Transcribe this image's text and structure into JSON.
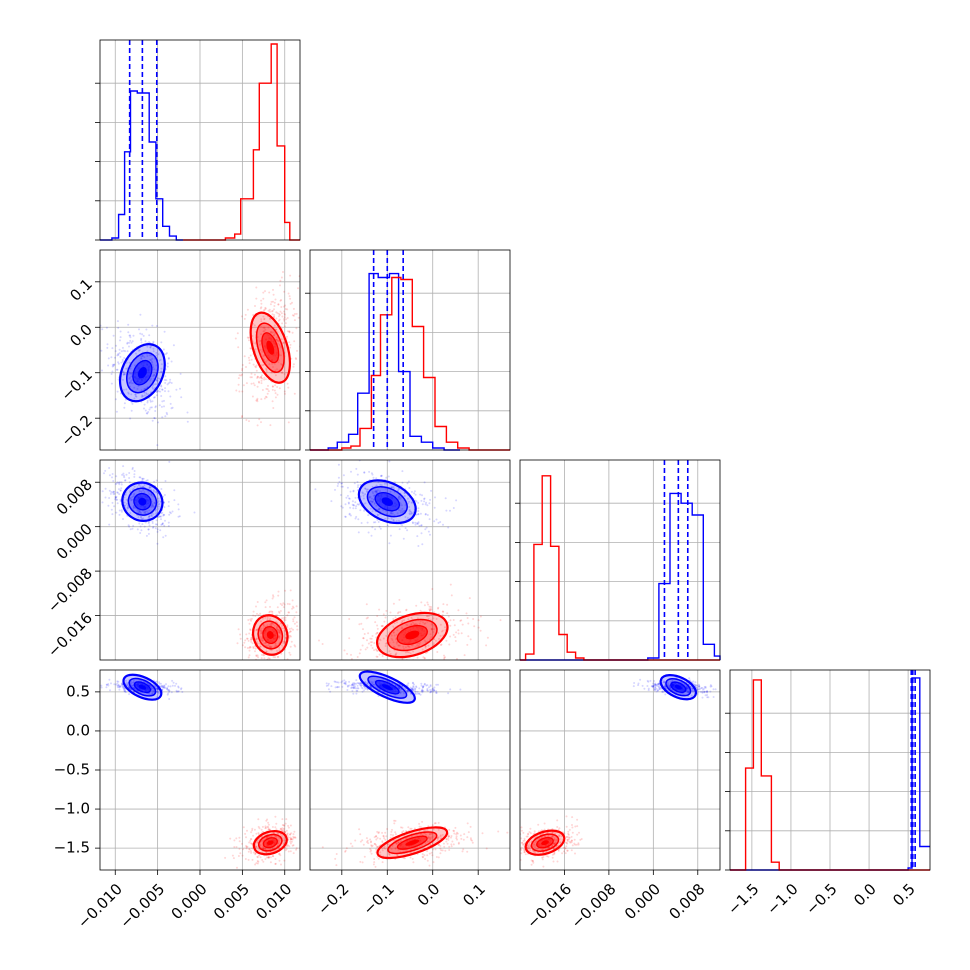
{
  "chart_data": {
    "type": "corner",
    "grid": true,
    "colors": {
      "series_a": "#0000ff",
      "series_b": "#ff0000"
    },
    "series": [
      {
        "color": "#0000ff",
        "centers": [
          -0.0068,
          -0.1,
          0.0045,
          0.56
        ],
        "spread": [
          0.0012,
          0.033,
          0.0017,
          0.025
        ],
        "quantile_lines": {
          "p0": [
            -0.0083,
            -0.0068,
            -0.0051
          ],
          "p1": [
            -0.13,
            -0.1,
            -0.065
          ],
          "p2": [
            0.002,
            0.0045,
            0.0062
          ],
          "p3": [
            0.54,
            0.56,
            0.59
          ]
        }
      },
      {
        "color": "#ff0000",
        "centers": [
          0.0083,
          -0.045,
          -0.0195,
          -1.43
        ],
        "spread": [
          0.001,
          0.04,
          0.0018,
          0.07
        ]
      }
    ],
    "histograms": [
      {
        "range": [
          -0.0118,
          0.0118
        ],
        "blue": [
          0.0,
          0.01,
          0.13,
          0.45,
          0.76,
          0.75,
          0.5,
          0.21,
          0.07,
          0.02,
          0.0
        ],
        "red": [
          0.0,
          0.01,
          0.03,
          0.21,
          0.46,
          0.8,
          1.0,
          0.48,
          0.09,
          0.0
        ],
        "blue_edges": [
          -0.0118,
          -0.0104,
          -0.0096,
          -0.0089,
          -0.0082,
          -0.0074,
          -0.006,
          -0.0052,
          -0.0044,
          -0.0036,
          -0.0028,
          -0.002
        ],
        "red_edges": [
          -0.002,
          0.003,
          0.0041,
          0.0048,
          0.0063,
          0.007,
          0.0084,
          0.0091,
          0.01,
          0.0106,
          0.0118
        ]
      },
      {
        "range": [
          -0.27,
          0.17
        ],
        "blue": [
          0.0,
          0.01,
          0.04,
          0.08,
          0.29,
          0.9,
          0.88,
          0.9,
          0.4,
          0.07,
          0.04,
          0.01,
          0.0
        ],
        "red": [
          0.0,
          0.01,
          0.02,
          0.11,
          0.38,
          0.69,
          0.88,
          0.87,
          0.63,
          0.37,
          0.12,
          0.04,
          0.01,
          0.0
        ],
        "blue_edges": [
          -0.27,
          -0.23,
          -0.21,
          -0.185,
          -0.165,
          -0.14,
          -0.12,
          -0.095,
          -0.075,
          -0.05,
          -0.025,
          0.0,
          0.025,
          0.06
        ],
        "red_edges": [
          -0.27,
          -0.2,
          -0.18,
          -0.16,
          -0.135,
          -0.115,
          -0.09,
          -0.07,
          -0.045,
          -0.02,
          0.005,
          0.03,
          0.055,
          0.08,
          0.17
        ]
      },
      {
        "range": [
          -0.024,
          0.012
        ],
        "blue": [
          0.0,
          0.01,
          0.39,
          0.85,
          0.8,
          0.74,
          0.08,
          0.02,
          0.0
        ],
        "red": [
          0.0,
          0.03,
          0.59,
          0.94,
          0.58,
          0.13,
          0.04,
          0.01,
          0.0
        ],
        "blue_edges": [
          -0.024,
          -0.001,
          0.001,
          0.003,
          0.005,
          0.007,
          0.009,
          0.011,
          0.012,
          0.012
        ],
        "red_edges": [
          -0.024,
          -0.023,
          -0.0215,
          -0.02,
          -0.0185,
          -0.017,
          -0.0155,
          -0.014,
          -0.0125,
          0.012
        ]
      },
      {
        "range": [
          -1.78,
          0.78
        ],
        "blue": [
          0.0,
          0.0,
          0.01,
          0.98,
          0.12
        ],
        "red": [
          0.0,
          0.52,
          0.97,
          0.48,
          0.04,
          0.0
        ],
        "blue_edges": [
          -1.78,
          -0.3,
          0.5,
          0.55,
          0.65,
          0.78
        ],
        "red_edges": [
          -1.78,
          -1.58,
          -1.48,
          -1.38,
          -1.25,
          -1.15,
          0.78
        ]
      }
    ],
    "axes": [
      {
        "range": [
          -0.0118,
          0.0118
        ],
        "ticks": [
          -0.01,
          -0.005,
          0.0,
          0.005,
          0.01
        ],
        "labels": [
          "−0.010",
          "−0.005",
          "0.000",
          "0.005",
          "0.010"
        ]
      },
      {
        "range": [
          -0.27,
          0.17
        ],
        "ticks": [
          -0.2,
          -0.1,
          0.0,
          0.1
        ],
        "labels": [
          "−0.2",
          "−0.1",
          "0.0",
          "0.1"
        ]
      },
      {
        "range": [
          -0.024,
          0.012
        ],
        "ticks": [
          -0.016,
          -0.008,
          0.0,
          0.008
        ],
        "labels": [
          "−0.016",
          "−0.008",
          "0.000",
          "0.008"
        ]
      },
      {
        "range": [
          -1.78,
          0.78
        ],
        "ticks": [
          -1.5,
          -1.0,
          -0.5,
          0.0,
          0.5
        ],
        "labels": [
          "−1.5",
          "−1.0",
          "−0.5",
          "0.0",
          "0.5"
        ]
      }
    ]
  }
}
